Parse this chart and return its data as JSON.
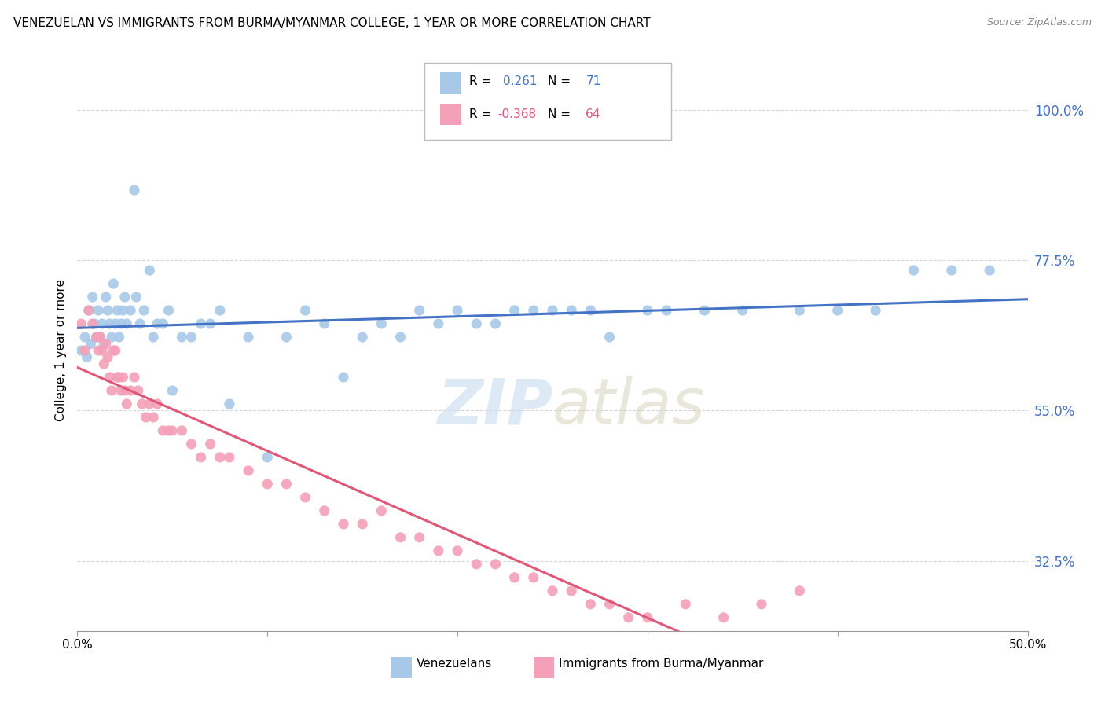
{
  "title": "VENEZUELAN VS IMMIGRANTS FROM BURMA/MYANMAR COLLEGE, 1 YEAR OR MORE CORRELATION CHART",
  "source": "Source: ZipAtlas.com",
  "ylabel": "College, 1 year or more",
  "ytick_labels": [
    "100.0%",
    "77.5%",
    "55.0%",
    "32.5%"
  ],
  "ytick_values": [
    1.0,
    0.775,
    0.55,
    0.325
  ],
  "xlim": [
    0.0,
    0.5
  ],
  "ylim": [
    0.22,
    1.06
  ],
  "legend_r1": "R =  0.261",
  "legend_n1": "N =  71",
  "legend_r2": "R = -0.368",
  "legend_n2": "N =  64",
  "blue_color": "#a8c8e8",
  "pink_color": "#f4a0b8",
  "blue_line_color": "#4472c4",
  "pink_line_color": "#e05878",
  "pink_dash_color": "#e8b0c0",
  "text_blue": "#4472c4",
  "text_pink": "#e05878",
  "venezuelans_scatter_x": [
    0.002,
    0.004,
    0.005,
    0.006,
    0.007,
    0.008,
    0.009,
    0.01,
    0.011,
    0.012,
    0.013,
    0.014,
    0.015,
    0.016,
    0.017,
    0.018,
    0.019,
    0.02,
    0.021,
    0.022,
    0.023,
    0.024,
    0.025,
    0.026,
    0.028,
    0.03,
    0.031,
    0.033,
    0.035,
    0.038,
    0.04,
    0.042,
    0.045,
    0.048,
    0.05,
    0.055,
    0.06,
    0.065,
    0.07,
    0.075,
    0.08,
    0.09,
    0.1,
    0.11,
    0.12,
    0.13,
    0.14,
    0.15,
    0.16,
    0.17,
    0.18,
    0.19,
    0.2,
    0.21,
    0.22,
    0.23,
    0.24,
    0.25,
    0.26,
    0.27,
    0.28,
    0.3,
    0.31,
    0.33,
    0.35,
    0.38,
    0.4,
    0.42,
    0.44,
    0.46,
    0.48
  ],
  "venezuelans_scatter_y": [
    0.64,
    0.66,
    0.63,
    0.7,
    0.65,
    0.72,
    0.68,
    0.66,
    0.7,
    0.66,
    0.68,
    0.65,
    0.72,
    0.7,
    0.68,
    0.66,
    0.74,
    0.68,
    0.7,
    0.66,
    0.68,
    0.7,
    0.72,
    0.68,
    0.7,
    0.88,
    0.72,
    0.68,
    0.7,
    0.76,
    0.66,
    0.68,
    0.68,
    0.7,
    0.58,
    0.66,
    0.66,
    0.68,
    0.68,
    0.7,
    0.56,
    0.66,
    0.48,
    0.66,
    0.7,
    0.68,
    0.6,
    0.66,
    0.68,
    0.66,
    0.7,
    0.68,
    0.7,
    0.68,
    0.68,
    0.7,
    0.7,
    0.7,
    0.7,
    0.7,
    0.66,
    0.7,
    0.7,
    0.7,
    0.7,
    0.7,
    0.7,
    0.7,
    0.76,
    0.76,
    0.76
  ],
  "burma_scatter_x": [
    0.002,
    0.004,
    0.006,
    0.008,
    0.01,
    0.011,
    0.012,
    0.013,
    0.014,
    0.015,
    0.016,
    0.017,
    0.018,
    0.019,
    0.02,
    0.021,
    0.022,
    0.023,
    0.024,
    0.025,
    0.026,
    0.028,
    0.03,
    0.032,
    0.034,
    0.036,
    0.038,
    0.04,
    0.042,
    0.045,
    0.048,
    0.05,
    0.055,
    0.06,
    0.065,
    0.07,
    0.075,
    0.08,
    0.09,
    0.1,
    0.11,
    0.12,
    0.13,
    0.14,
    0.15,
    0.16,
    0.17,
    0.18,
    0.19,
    0.2,
    0.21,
    0.22,
    0.23,
    0.24,
    0.25,
    0.26,
    0.27,
    0.28,
    0.29,
    0.3,
    0.32,
    0.34,
    0.36,
    0.38
  ],
  "burma_scatter_y": [
    0.68,
    0.64,
    0.7,
    0.68,
    0.66,
    0.64,
    0.66,
    0.64,
    0.62,
    0.65,
    0.63,
    0.6,
    0.58,
    0.64,
    0.64,
    0.6,
    0.6,
    0.58,
    0.6,
    0.58,
    0.56,
    0.58,
    0.6,
    0.58,
    0.56,
    0.54,
    0.56,
    0.54,
    0.56,
    0.52,
    0.52,
    0.52,
    0.52,
    0.5,
    0.48,
    0.5,
    0.48,
    0.48,
    0.46,
    0.44,
    0.44,
    0.42,
    0.4,
    0.38,
    0.38,
    0.4,
    0.36,
    0.36,
    0.34,
    0.34,
    0.32,
    0.32,
    0.3,
    0.3,
    0.28,
    0.28,
    0.26,
    0.26,
    0.24,
    0.24,
    0.26,
    0.24,
    0.26,
    0.28
  ]
}
